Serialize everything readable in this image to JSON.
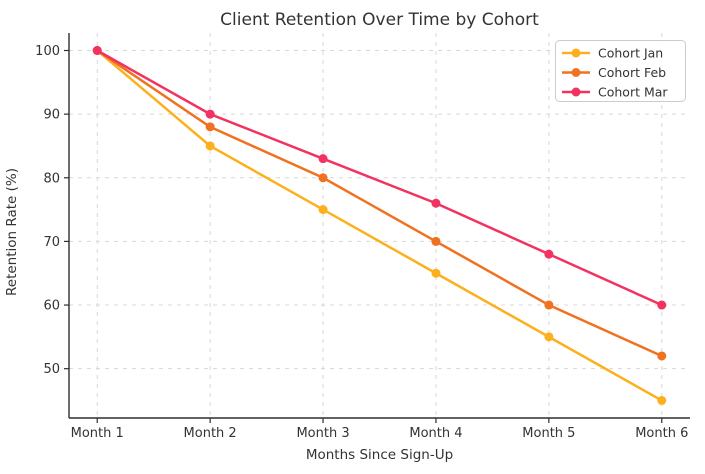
{
  "chart_data": {
    "type": "line",
    "title": "Client Retention Over Time by Cohort",
    "xlabel": "Months Since Sign-Up",
    "ylabel": "Retention Rate (%)",
    "categories": [
      "Month 1",
      "Month 2",
      "Month 3",
      "Month 4",
      "Month 5",
      "Month 6"
    ],
    "x": [
      1,
      2,
      3,
      4,
      5,
      6
    ],
    "series": [
      {
        "name": "Cohort Jan",
        "color": "#FDB01E",
        "values": [
          100,
          85,
          75,
          65,
          55,
          45
        ]
      },
      {
        "name": "Cohort Feb",
        "color": "#F0711F",
        "values": [
          100,
          88,
          80,
          70,
          60,
          52
        ]
      },
      {
        "name": "Cohort Mar",
        "color": "#F23260",
        "values": [
          100,
          90,
          83,
          76,
          68,
          60
        ]
      }
    ],
    "yticks": [
      50,
      60,
      70,
      80,
      90,
      100
    ],
    "ylim": [
      42.25,
      102.75
    ],
    "xlim": [
      0.75,
      6.25
    ],
    "grid": true,
    "grid_style": "dashed",
    "legend": {
      "position": "upper right",
      "entries": [
        "Cohort Jan",
        "Cohort Feb",
        "Cohort Mar"
      ]
    },
    "colors": {
      "background": "#ffffff",
      "grid": "#d8d8d8",
      "spine": "#2e2e2e",
      "text": "#333333",
      "legend_border": "#cccccc"
    },
    "marker": "circle",
    "line_width": 2.5,
    "marker_radius": 4.5
  }
}
